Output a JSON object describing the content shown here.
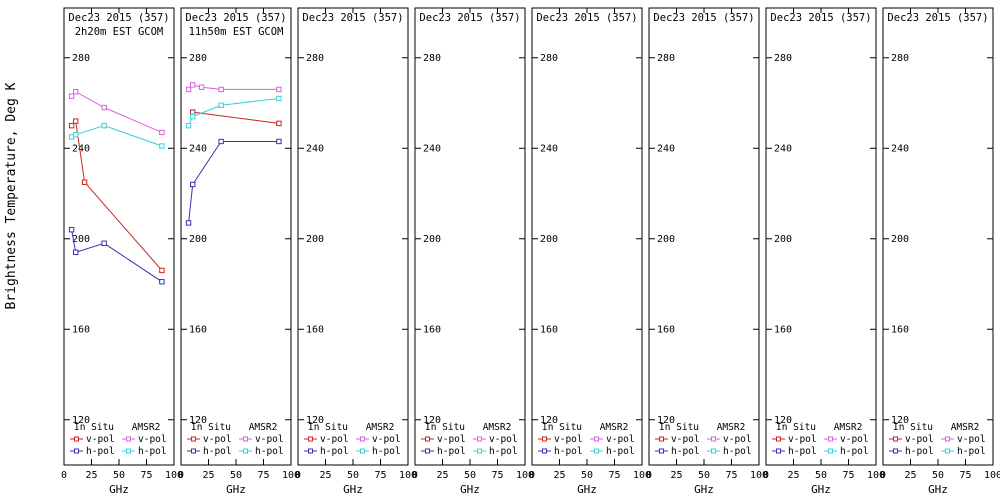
{
  "chart_data": {
    "type": "line",
    "title": "Dec23 2015 (357)",
    "ylabel": "Brightness Temperature, Deg K",
    "xlabel": "GHz",
    "xlim": [
      0,
      100
    ],
    "ylim": [
      100,
      302
    ],
    "xticks": [
      0,
      25,
      50,
      75,
      100
    ],
    "yticks": [
      120,
      160,
      200,
      240,
      280
    ],
    "grid": false,
    "legend": {
      "position": "bottom-inside",
      "headers": [
        "In Situ",
        "AMSR2"
      ],
      "rows": [
        "v-pol",
        "h-pol"
      ]
    },
    "series_styles": [
      {
        "key": "insitu_vpol",
        "label": "v-pol",
        "group": "In Situ",
        "color": "#cc2222",
        "legend_col": 0,
        "legend_row": 0
      },
      {
        "key": "insitu_hpol",
        "label": "h-pol",
        "group": "In Situ",
        "color": "#3333b3",
        "legend_col": 0,
        "legend_row": 1
      },
      {
        "key": "amsr2_vpol",
        "label": "v-pol",
        "group": "AMSR2",
        "color": "#e05ce0",
        "legend_col": 1,
        "legend_row": 0
      },
      {
        "key": "amsr2_hpol",
        "label": "h-pol",
        "group": "AMSR2",
        "color": "#3cd2d2",
        "legend_col": 1,
        "legend_row": 1
      }
    ],
    "panels": [
      {
        "title": "Dec23 2015 (357)",
        "subtitle": "2h20m EST GCOM",
        "series": {
          "insitu_vpol": {
            "x": [
              6.9,
              10.65,
              18.7,
              89
            ],
            "y": [
              250,
              252,
              225,
              186
            ]
          },
          "insitu_hpol": {
            "x": [
              6.9,
              10.65,
              36.5,
              89
            ],
            "y": [
              204,
              194,
              198,
              181
            ]
          },
          "amsr2_vpol": {
            "x": [
              6.9,
              10.65,
              36.5,
              89
            ],
            "y": [
              263,
              265,
              258,
              247
            ]
          },
          "amsr2_hpol": {
            "x": [
              6.9,
              10.65,
              36.5,
              89
            ],
            "y": [
              245,
              246,
              250,
              241
            ]
          }
        }
      },
      {
        "title": "Dec23 2015 (357)",
        "subtitle": "11h50m EST GCOM",
        "series": {
          "insitu_vpol": {
            "x": [
              10.65,
              89
            ],
            "y": [
              256,
              251
            ]
          },
          "insitu_hpol": {
            "x": [
              6.9,
              10.65,
              36.5,
              89
            ],
            "y": [
              207,
              224,
              243,
              243
            ]
          },
          "amsr2_vpol": {
            "x": [
              6.9,
              10.65,
              18.7,
              36.5,
              89
            ],
            "y": [
              266,
              268,
              267,
              266,
              266
            ]
          },
          "amsr2_hpol": {
            "x": [
              6.9,
              10.65,
              36.5,
              89
            ],
            "y": [
              250,
              254,
              259,
              262
            ]
          }
        }
      },
      {
        "title": "Dec23 2015 (357)",
        "subtitle": "",
        "series": {}
      },
      {
        "title": "Dec23 2015 (357)",
        "subtitle": "",
        "series": {}
      },
      {
        "title": "Dec23 2015 (357)",
        "subtitle": "",
        "series": {}
      },
      {
        "title": "Dec23 2015 (357)",
        "subtitle": "",
        "series": {}
      },
      {
        "title": "Dec23 2015 (357)",
        "subtitle": "",
        "series": {}
      },
      {
        "title": "Dec23 2015 (357)",
        "subtitle": "",
        "series": {}
      }
    ]
  }
}
